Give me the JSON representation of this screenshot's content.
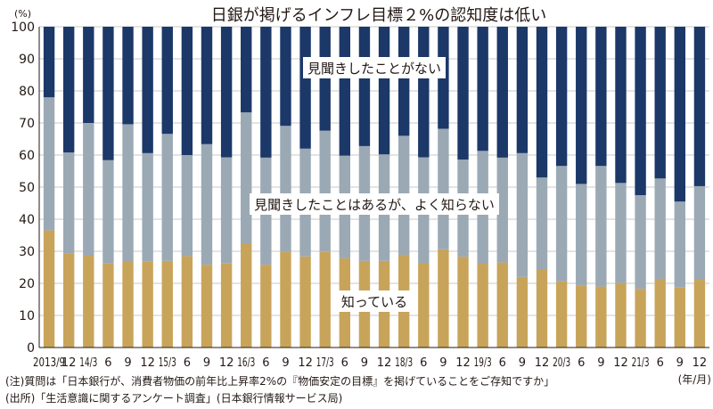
{
  "chart_data": {
    "type": "bar",
    "stacked": true,
    "title": "日銀が掲げるインフレ目標２%の認知度は低い",
    "y_unit": "(%)",
    "x_unit": "(年/月)",
    "ylim": [
      0,
      100
    ],
    "y_ticks": [
      0,
      10,
      20,
      30,
      40,
      50,
      60,
      70,
      80,
      90,
      100
    ],
    "grid": true,
    "categories": [
      "2013/9",
      "12",
      "14/3",
      "6",
      "9",
      "12",
      "15/3",
      "6",
      "9",
      "12",
      "16/3",
      "6",
      "9",
      "12",
      "17/3",
      "6",
      "9",
      "12",
      "18/3",
      "6",
      "9",
      "12",
      "19/3",
      "6",
      "9",
      "12",
      "20/3",
      "6",
      "9",
      "12",
      "21/3",
      "6",
      "9",
      "12"
    ],
    "series": [
      {
        "name": "知っている",
        "color": "#c8a45a",
        "values": [
          36.5,
          29.2,
          28.6,
          26.2,
          26.8,
          26.9,
          27.0,
          28.5,
          25.8,
          26.3,
          32.5,
          25.8,
          29.9,
          28.4,
          29.8,
          27.8,
          27.0,
          27.0,
          28.9,
          26.4,
          30.6,
          28.3,
          26.1,
          26.5,
          22.0,
          24.3,
          20.6,
          19.2,
          19.0,
          20.1,
          18.3,
          21.4,
          18.8,
          21.1
        ]
      },
      {
        "name": "見聞きしたことはあるが、よく知らない",
        "color": "#9ba9b5",
        "values": [
          41.5,
          31.6,
          41.4,
          32.2,
          42.8,
          33.7,
          39.6,
          31.5,
          37.6,
          33.0,
          40.8,
          33.4,
          39.2,
          33.6,
          37.8,
          32.0,
          35.8,
          33.2,
          37.1,
          32.9,
          37.6,
          30.3,
          35.2,
          32.7,
          38.6,
          28.7,
          36.0,
          31.8,
          37.6,
          31.2,
          29.2,
          31.3,
          26.7,
          29.2
        ]
      },
      {
        "name": "見聞きしたことがない",
        "color": "#1b3868",
        "values": [
          22.0,
          39.2,
          30.0,
          41.6,
          30.4,
          39.4,
          33.4,
          40.0,
          36.6,
          40.7,
          26.7,
          40.8,
          30.9,
          38.0,
          32.4,
          40.2,
          37.2,
          39.8,
          34.0,
          40.7,
          31.8,
          41.4,
          38.7,
          40.8,
          39.4,
          47.0,
          43.4,
          49.0,
          43.4,
          48.7,
          52.5,
          47.3,
          54.5,
          49.7
        ]
      }
    ]
  },
  "notes": {
    "note1": "(注)質問は「日本銀行が、消費者物価の前年比上昇率2%の『物価安定の目標』を掲げていることをご存知ですか」",
    "source": "(出所)「生活意識に関するアンケート調査」(日本銀行情報サービス局)"
  }
}
